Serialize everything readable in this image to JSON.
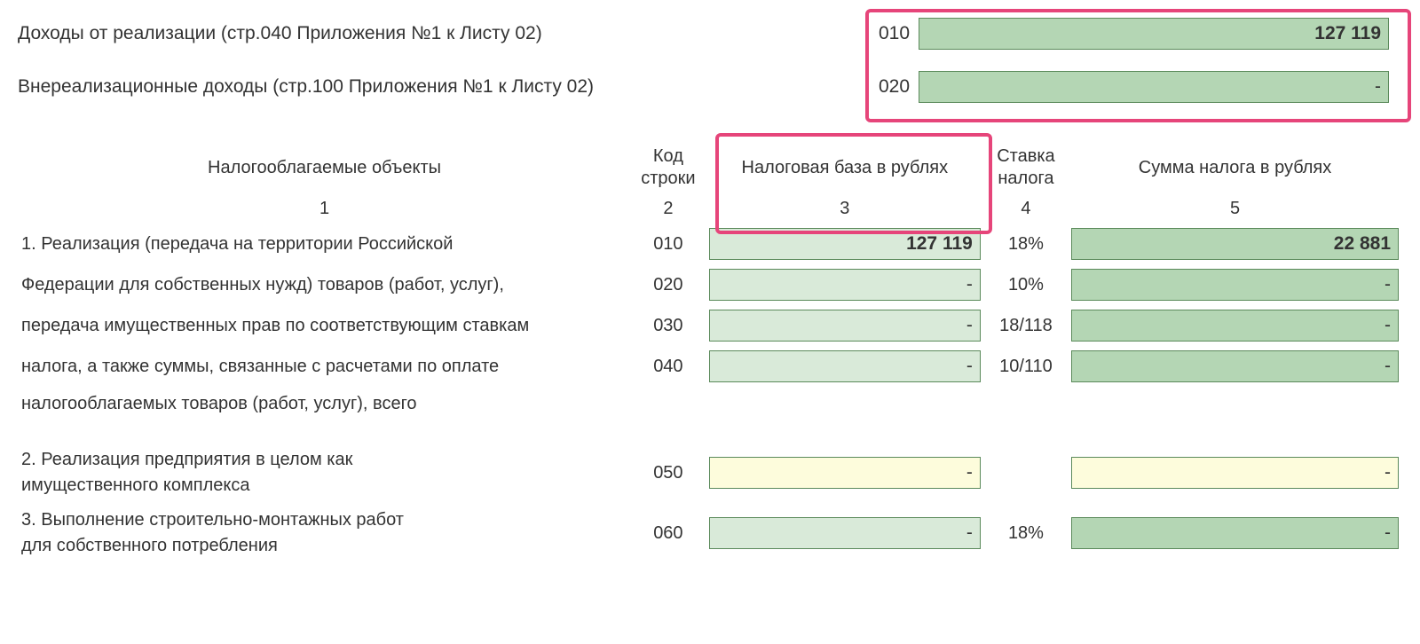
{
  "colors": {
    "green_dark": "#b4d6b4",
    "green_light": "#d9ead9",
    "yellow": "#fdfcdc",
    "border": "#5b8a5b",
    "highlight": "#e6457a",
    "text": "#333333",
    "background": "#ffffff"
  },
  "top": {
    "rows": [
      {
        "label": "Доходы от реализации (стр.040 Приложения №1 к Листу 02)",
        "code": "010",
        "value": "127 119",
        "bold": true
      },
      {
        "label": "Внереализационные доходы (стр.100 Приложения №1 к Листу 02)",
        "code": "020",
        "value": "-",
        "bold": false
      }
    ]
  },
  "table": {
    "headers": {
      "desc": "Налогооблагаемые объекты",
      "code": "Код строки",
      "base": "Налоговая база в рублях",
      "rate": "Ставка налога",
      "sum": "Сумма налога в рублях"
    },
    "colnums": {
      "desc": "1",
      "code": "2",
      "base": "3",
      "rate": "4",
      "sum": "5"
    },
    "section1_lines": [
      "1. Реализация (передача на территории Российской",
      "Федерации для собственных нужд) товаров (работ, услуг),",
      "передача имущественных прав по соответствующим ставкам",
      "налога, а также суммы, связанные с расчетами по оплате",
      "налогооблагаемых товаров (работ, услуг), всего"
    ],
    "section1_rows": [
      {
        "code": "010",
        "base": "127 119",
        "rate": "18%",
        "sum": "22 881",
        "base_bold": true,
        "sum_bold": true,
        "base_bg": "green-light",
        "sum_bg": "green-dark"
      },
      {
        "code": "020",
        "base": "-",
        "rate": "10%",
        "sum": "-",
        "base_bold": false,
        "sum_bold": false,
        "base_bg": "green-light",
        "sum_bg": "green-dark"
      },
      {
        "code": "030",
        "base": "-",
        "rate": "18/118",
        "sum": "-",
        "base_bold": false,
        "sum_bold": false,
        "base_bg": "green-light",
        "sum_bg": "green-dark"
      },
      {
        "code": "040",
        "base": "-",
        "rate": "10/110",
        "sum": "-",
        "base_bold": false,
        "sum_bold": false,
        "base_bg": "green-light",
        "sum_bg": "green-dark"
      }
    ],
    "section2": {
      "desc_line1": "2. Реализация предприятия в целом как",
      "desc_line2": "имущественного комплекса",
      "code": "050",
      "base": "-",
      "rate": "",
      "sum": "-",
      "base_bg": "yellow",
      "sum_bg": "yellow"
    },
    "section3": {
      "desc_line1": "3. Выполнение строительно-монтажных работ",
      "desc_line2": "для собственного потребления",
      "code": "060",
      "base": "-",
      "rate": "18%",
      "sum": "-",
      "base_bg": "green-light",
      "sum_bg": "green-dark"
    }
  }
}
